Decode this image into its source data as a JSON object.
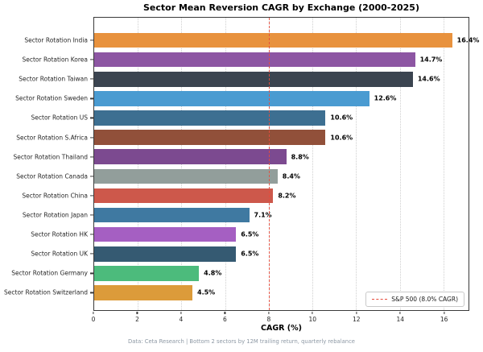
{
  "title": "Sector Mean Reversion CAGR by Exchange (2000-2025)",
  "xlabel": "CAGR (%)",
  "footer": "Data: Ceta Research | Bottom 2 sectors by 12M trailing return, quarterly rebalance",
  "legend": {
    "label": "S&P 500 (8.0% CAGR)",
    "line_color": "#e74c3c",
    "line_style": "dashed",
    "position": "lower right"
  },
  "axis": {
    "xmin": 0,
    "xmax": 17.15,
    "ticks": [
      0,
      2,
      4,
      6,
      8,
      10,
      12,
      14,
      16
    ],
    "tick_labels": [
      "0",
      "2",
      "4",
      "6",
      "8",
      "10",
      "12",
      "14",
      "16"
    ],
    "grid": "vertical-dotted"
  },
  "reference_line": {
    "value": 8.0,
    "color": "#e74c3c",
    "style": "dashed"
  },
  "chart_data": {
    "type": "bar",
    "orientation": "horizontal",
    "title": "Sector Mean Reversion CAGR by Exchange (2000-2025)",
    "xlabel": "CAGR (%)",
    "ylabel": "",
    "xlim": [
      0,
      17.15
    ],
    "legend_position": "lower right",
    "grid": "vertical-dotted",
    "categories": [
      "Sector Rotation India",
      "Sector Rotation Korea",
      "Sector Rotation Taiwan",
      "Sector Rotation Sweden",
      "Sector Rotation US",
      "Sector Rotation S.Africa",
      "Sector Rotation Thailand",
      "Sector Rotation Canada",
      "Sector Rotation China",
      "Sector Rotation Japan",
      "Sector Rotation HK",
      "Sector Rotation UK",
      "Sector Rotation Germany",
      "Sector Rotation Switzerland"
    ],
    "values": [
      16.4,
      14.7,
      14.6,
      12.6,
      10.6,
      10.6,
      8.8,
      8.4,
      8.2,
      7.1,
      6.5,
      6.5,
      4.8,
      4.5
    ],
    "value_labels": [
      "16.4%",
      "14.7%",
      "14.6%",
      "12.6%",
      "10.6%",
      "10.6%",
      "8.8%",
      "8.4%",
      "8.2%",
      "7.1%",
      "6.5%",
      "6.5%",
      "4.8%",
      "4.5%"
    ],
    "bar_colors": [
      "#e8923e",
      "#8d56a3",
      "#3b4450",
      "#4a9bd1",
      "#3d6f91",
      "#91503a",
      "#7c4a90",
      "#929e9b",
      "#cd584b",
      "#3f79a1",
      "#a55fc2",
      "#355a72",
      "#4cbb7c",
      "#dc9b3a"
    ],
    "reference_line": {
      "label": "S&P 500 (8.0% CAGR)",
      "value": 8.0,
      "color": "#e74c3c"
    }
  }
}
